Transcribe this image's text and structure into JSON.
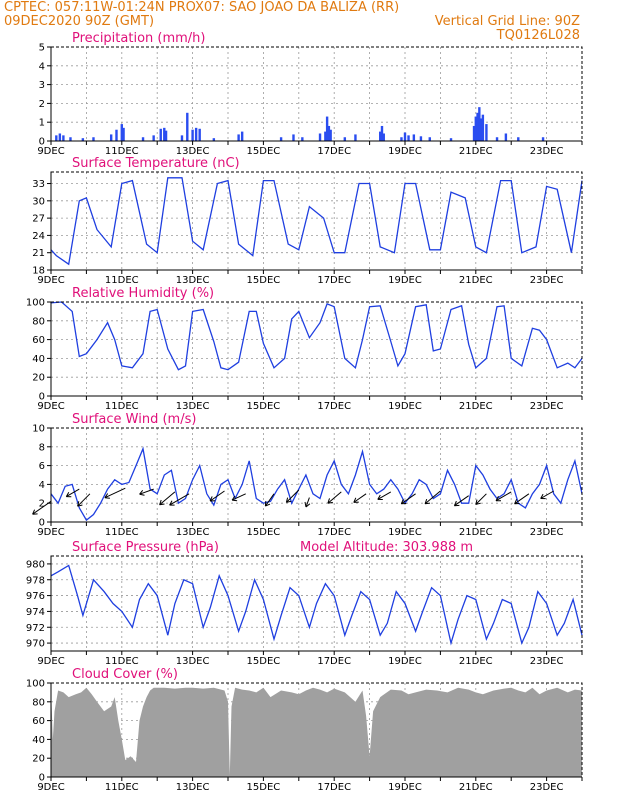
{
  "header": {
    "left_line1": "CPTEC:   057:11W-01:24N   PROX07: SAO JOAO DA BALIZA (RR)",
    "left_line2": "09DEC2020 90Z (GMT)",
    "right_line2": "Vertical Grid Line: 90Z",
    "right_line3": "TQ0126L028"
  },
  "x_tick_labels": [
    "9DEC",
    "11DEC",
    "13DEC",
    "15DEC",
    "17DEC",
    "19DEC",
    "21DEC",
    "23DEC"
  ],
  "chart_data": [
    {
      "type": "bar",
      "title": "Precipitation (mm/h)",
      "ylim": [
        0,
        5
      ],
      "yticks": [
        0,
        1,
        2,
        3,
        4,
        5
      ],
      "x_range_days": [
        0,
        15
      ],
      "color": "#2a4df0",
      "bars": [
        [
          0.15,
          0.3
        ],
        [
          0.25,
          0.4
        ],
        [
          0.35,
          0.3
        ],
        [
          0.55,
          0.2
        ],
        [
          0.9,
          0.15
        ],
        [
          1.2,
          0.2
        ],
        [
          1.7,
          0.35
        ],
        [
          1.85,
          0.6
        ],
        [
          2.0,
          0.9
        ],
        [
          2.05,
          0.7
        ],
        [
          2.6,
          0.2
        ],
        [
          2.9,
          0.3
        ],
        [
          3.1,
          0.65
        ],
        [
          3.2,
          0.7
        ],
        [
          3.25,
          0.55
        ],
        [
          3.7,
          0.3
        ],
        [
          3.85,
          1.5
        ],
        [
          4.0,
          0.6
        ],
        [
          4.1,
          0.7
        ],
        [
          4.2,
          0.65
        ],
        [
          4.6,
          0.15
        ],
        [
          5.3,
          0.35
        ],
        [
          5.4,
          0.5
        ],
        [
          6.5,
          0.2
        ],
        [
          6.85,
          0.35
        ],
        [
          7.1,
          0.2
        ],
        [
          7.6,
          0.4
        ],
        [
          7.75,
          0.5
        ],
        [
          7.8,
          1.3
        ],
        [
          7.85,
          0.8
        ],
        [
          7.9,
          0.6
        ],
        [
          8.3,
          0.2
        ],
        [
          8.6,
          0.35
        ],
        [
          9.3,
          0.5
        ],
        [
          9.35,
          0.8
        ],
        [
          9.4,
          0.4
        ],
        [
          9.9,
          0.2
        ],
        [
          10.0,
          0.45
        ],
        [
          10.1,
          0.3
        ],
        [
          10.25,
          0.35
        ],
        [
          10.45,
          0.25
        ],
        [
          10.7,
          0.2
        ],
        [
          11.3,
          0.15
        ],
        [
          11.95,
          0.8
        ],
        [
          12.0,
          1.3
        ],
        [
          12.05,
          1.5
        ],
        [
          12.1,
          1.8
        ],
        [
          12.15,
          1.2
        ],
        [
          12.2,
          1.4
        ],
        [
          12.3,
          0.9
        ],
        [
          12.6,
          0.2
        ],
        [
          12.85,
          0.4
        ],
        [
          13.2,
          0.2
        ],
        [
          13.9,
          0.2
        ]
      ]
    },
    {
      "type": "line",
      "title": "Surface Temperature (nC)",
      "ylim": [
        18,
        35
      ],
      "yticks": [
        18,
        21,
        24,
        27,
        30,
        33
      ],
      "x_range_days": [
        0,
        15
      ],
      "color": "#1f3fe0",
      "x": [
        0,
        0.15,
        0.5,
        0.8,
        1.0,
        1.3,
        1.7,
        2.0,
        2.3,
        2.7,
        3.0,
        3.3,
        3.7,
        4.0,
        4.3,
        4.7,
        5.0,
        5.3,
        5.7,
        6.0,
        6.3,
        6.7,
        7.0,
        7.3,
        7.7,
        8.0,
        8.3,
        8.7,
        9.0,
        9.3,
        9.7,
        10.0,
        10.3,
        10.7,
        11.0,
        11.3,
        11.7,
        12.0,
        12.3,
        12.7,
        13.0,
        13.3,
        13.7,
        14.0,
        14.3,
        14.7,
        15.0
      ],
      "y": [
        21.5,
        20.5,
        19.0,
        30.0,
        30.5,
        25.0,
        22.0,
        33.0,
        33.5,
        22.5,
        21.0,
        34.0,
        34.0,
        23.0,
        21.5,
        33.0,
        33.5,
        22.5,
        20.5,
        33.5,
        33.5,
        22.5,
        21.5,
        29.0,
        27.0,
        21.0,
        21.0,
        33.0,
        33.0,
        22.0,
        21.0,
        33.0,
        33.0,
        21.5,
        21.5,
        31.5,
        30.5,
        22.0,
        21.0,
        33.5,
        33.5,
        21.0,
        22.0,
        32.5,
        32.0,
        21.0,
        33.5
      ]
    },
    {
      "type": "line",
      "title": "Relative Humidity (%)",
      "ylim": [
        0,
        100
      ],
      "yticks": [
        0,
        20,
        40,
        60,
        80,
        100
      ],
      "x_range_days": [
        0,
        15
      ],
      "color": "#1f3fe0",
      "x": [
        0,
        0.3,
        0.6,
        0.8,
        1.0,
        1.3,
        1.6,
        1.8,
        2.0,
        2.3,
        2.6,
        2.8,
        3.0,
        3.3,
        3.6,
        3.8,
        4.0,
        4.3,
        4.6,
        4.8,
        5.0,
        5.3,
        5.6,
        5.8,
        6.0,
        6.3,
        6.6,
        6.8,
        7.0,
        7.3,
        7.6,
        7.8,
        8.0,
        8.3,
        8.6,
        8.8,
        9.0,
        9.3,
        9.6,
        9.8,
        10.0,
        10.3,
        10.6,
        10.8,
        11.0,
        11.3,
        11.6,
        11.8,
        12.0,
        12.3,
        12.6,
        12.8,
        13.0,
        13.3,
        13.6,
        13.8,
        14.0,
        14.3,
        14.6,
        14.8,
        15.0
      ],
      "y": [
        99,
        100,
        90,
        42,
        45,
        60,
        78,
        60,
        32,
        30,
        45,
        90,
        92,
        50,
        28,
        32,
        90,
        92,
        58,
        30,
        28,
        36,
        90,
        90,
        56,
        30,
        40,
        82,
        90,
        62,
        78,
        98,
        95,
        40,
        30,
        60,
        95,
        96,
        58,
        32,
        45,
        95,
        97,
        48,
        50,
        92,
        96,
        55,
        30,
        40,
        95,
        96,
        40,
        32,
        72,
        70,
        60,
        30,
        35,
        30,
        40
      ]
    },
    {
      "type": "line",
      "title": "Surface Wind (m/s)",
      "ylim": [
        0,
        10
      ],
      "yticks": [
        0,
        2,
        4,
        6,
        8,
        10
      ],
      "x_range_days": [
        0,
        15
      ],
      "color": "#1f3fe0",
      "x": [
        0,
        0.2,
        0.4,
        0.6,
        0.8,
        1.0,
        1.2,
        1.4,
        1.6,
        1.8,
        2.0,
        2.2,
        2.4,
        2.6,
        2.8,
        3.0,
        3.2,
        3.4,
        3.6,
        3.8,
        4.0,
        4.2,
        4.4,
        4.6,
        4.8,
        5.0,
        5.2,
        5.4,
        5.6,
        5.8,
        6.0,
        6.2,
        6.4,
        6.6,
        6.8,
        7.0,
        7.2,
        7.4,
        7.6,
        7.8,
        8.0,
        8.2,
        8.4,
        8.6,
        8.8,
        9.0,
        9.2,
        9.4,
        9.6,
        9.8,
        10.0,
        10.2,
        10.4,
        10.6,
        10.8,
        11.0,
        11.2,
        11.4,
        11.6,
        11.8,
        12.0,
        12.2,
        12.4,
        12.6,
        12.8,
        13.0,
        13.2,
        13.4,
        13.6,
        13.8,
        14.0,
        14.2,
        14.4,
        14.6,
        14.8,
        15.0
      ],
      "y": [
        3.0,
        2.0,
        3.8,
        4.0,
        1.5,
        0.2,
        0.8,
        2.0,
        3.5,
        4.5,
        4.0,
        4.2,
        6.0,
        7.8,
        3.5,
        3.0,
        5.0,
        5.5,
        2.0,
        2.5,
        4.5,
        6.0,
        3.0,
        1.8,
        4.0,
        4.5,
        2.5,
        4.0,
        6.5,
        2.5,
        2.0,
        2.2,
        3.5,
        4.5,
        2.0,
        3.5,
        5.0,
        3.0,
        2.5,
        5.0,
        6.5,
        4.0,
        3.0,
        5.0,
        7.5,
        4.0,
        3.0,
        3.5,
        4.5,
        3.5,
        2.0,
        3.0,
        4.5,
        4.0,
        2.5,
        3.0,
        5.5,
        4.0,
        2.0,
        2.0,
        6.0,
        5.0,
        3.5,
        2.5,
        3.0,
        4.5,
        2.0,
        1.5,
        3.0,
        4.0,
        6.0,
        3.0,
        2.0,
        4.5,
        6.5,
        3.0
      ],
      "vectors": [
        [
          0.0,
          2.2,
          4.5,
          145
        ],
        [
          0.8,
          3.5,
          3.0,
          150
        ],
        [
          1.1,
          3.0,
          3.5,
          135
        ],
        [
          2.1,
          3.6,
          4.5,
          155
        ],
        [
          2.9,
          3.5,
          3.0,
          160
        ],
        [
          3.5,
          3.2,
          4.0,
          140
        ],
        [
          3.9,
          3.0,
          4.5,
          150
        ],
        [
          4.9,
          3.3,
          3.5,
          145
        ],
        [
          5.5,
          3.0,
          3.0,
          155
        ],
        [
          6.3,
          3.0,
          3.0,
          125
        ],
        [
          7.0,
          3.4,
          3.5,
          135
        ],
        [
          7.3,
          2.6,
          2.0,
          110
        ],
        [
          8.2,
          3.2,
          3.5,
          140
        ],
        [
          8.9,
          3.0,
          3.0,
          145
        ],
        [
          9.6,
          3.2,
          3.0,
          150
        ],
        [
          10.3,
          3.0,
          3.5,
          145
        ],
        [
          11.0,
          3.3,
          4.0,
          140
        ],
        [
          11.8,
          2.8,
          3.5,
          145
        ],
        [
          12.3,
          3.0,
          3.0,
          135
        ],
        [
          13.0,
          3.2,
          3.5,
          150
        ],
        [
          13.5,
          3.0,
          3.5,
          145
        ],
        [
          14.2,
          3.3,
          3.0,
          150
        ]
      ]
    },
    {
      "type": "line",
      "title": "Surface Pressure (hPa)",
      "subtitle": "Model Altitude: 303.988 m",
      "ylim": [
        969,
        981
      ],
      "yticks": [
        970,
        972,
        974,
        976,
        978,
        980
      ],
      "x_range_days": [
        0,
        15
      ],
      "color": "#1f3fe0",
      "x": [
        0,
        0.2,
        0.5,
        0.75,
        0.9,
        1.2,
        1.5,
        1.75,
        2.0,
        2.3,
        2.5,
        2.75,
        3.0,
        3.3,
        3.5,
        3.75,
        4.0,
        4.3,
        4.5,
        4.75,
        5.0,
        5.3,
        5.5,
        5.75,
        6.0,
        6.3,
        6.5,
        6.75,
        7.0,
        7.3,
        7.5,
        7.75,
        8.0,
        8.3,
        8.5,
        8.75,
        9.0,
        9.3,
        9.5,
        9.75,
        10.0,
        10.3,
        10.5,
        10.75,
        11.0,
        11.3,
        11.5,
        11.75,
        12.0,
        12.3,
        12.5,
        12.75,
        13.0,
        13.3,
        13.5,
        13.75,
        14.0,
        14.3,
        14.5,
        14.75,
        15.0
      ],
      "y": [
        978.5,
        979.0,
        979.8,
        976.0,
        973.5,
        978.0,
        976.5,
        975.0,
        974.0,
        972.0,
        975.5,
        977.5,
        976.0,
        971.0,
        975.0,
        978.0,
        977.5,
        972.0,
        974.5,
        978.5,
        976.0,
        971.5,
        974.0,
        978.0,
        975.5,
        970.5,
        973.5,
        977.0,
        976.0,
        972.0,
        975.0,
        977.5,
        976.0,
        971.0,
        973.5,
        976.5,
        975.5,
        971.0,
        972.5,
        976.5,
        975.0,
        971.5,
        974.0,
        977.0,
        976.0,
        970.0,
        973.0,
        976.0,
        975.5,
        970.5,
        972.5,
        975.5,
        975.0,
        970.0,
        972.0,
        976.5,
        975.0,
        971.0,
        972.5,
        975.5,
        971.0
      ]
    },
    {
      "type": "area",
      "title": "Cloud Cover (%)",
      "ylim": [
        0,
        100
      ],
      "yticks": [
        0,
        20,
        40,
        60,
        80,
        100
      ],
      "x_range_days": [
        0,
        15
      ],
      "color": "#a0a0a0",
      "x": [
        0,
        0.05,
        0.1,
        0.2,
        0.35,
        0.5,
        0.7,
        0.85,
        1.0,
        1.15,
        1.3,
        1.5,
        1.7,
        1.8,
        1.9,
        2.0,
        2.1,
        2.25,
        2.4,
        2.5,
        2.6,
        2.7,
        2.8,
        2.9,
        3.0,
        3.2,
        3.5,
        3.8,
        4.0,
        4.3,
        4.6,
        4.9,
        5.0,
        5.05,
        5.1,
        5.2,
        5.4,
        5.6,
        5.8,
        6.0,
        6.2,
        6.5,
        6.8,
        7.0,
        7.2,
        7.4,
        7.6,
        7.8,
        8.0,
        8.3,
        8.6,
        8.8,
        8.9,
        9.0,
        9.1,
        9.3,
        9.6,
        9.9,
        10.1,
        10.3,
        10.6,
        10.9,
        11.2,
        11.5,
        11.8,
        12.0,
        12.2,
        12.5,
        12.8,
        13.0,
        13.2,
        13.4,
        13.6,
        13.8,
        14.0,
        14.3,
        14.6,
        14.8,
        15.0
      ],
      "y": [
        95,
        40,
        70,
        92,
        90,
        85,
        88,
        90,
        95,
        88,
        80,
        70,
        75,
        85,
        60,
        40,
        18,
        22,
        16,
        60,
        75,
        85,
        92,
        95,
        95,
        95,
        94,
        95,
        95,
        94,
        95,
        92,
        80,
        2,
        75,
        95,
        93,
        92,
        90,
        95,
        85,
        92,
        90,
        88,
        92,
        95,
        93,
        90,
        94,
        90,
        80,
        92,
        65,
        22,
        70,
        85,
        93,
        92,
        88,
        90,
        93,
        92,
        90,
        95,
        93,
        90,
        88,
        92,
        94,
        95,
        92,
        90,
        95,
        88,
        92,
        95,
        90,
        93,
        92
      ]
    }
  ]
}
